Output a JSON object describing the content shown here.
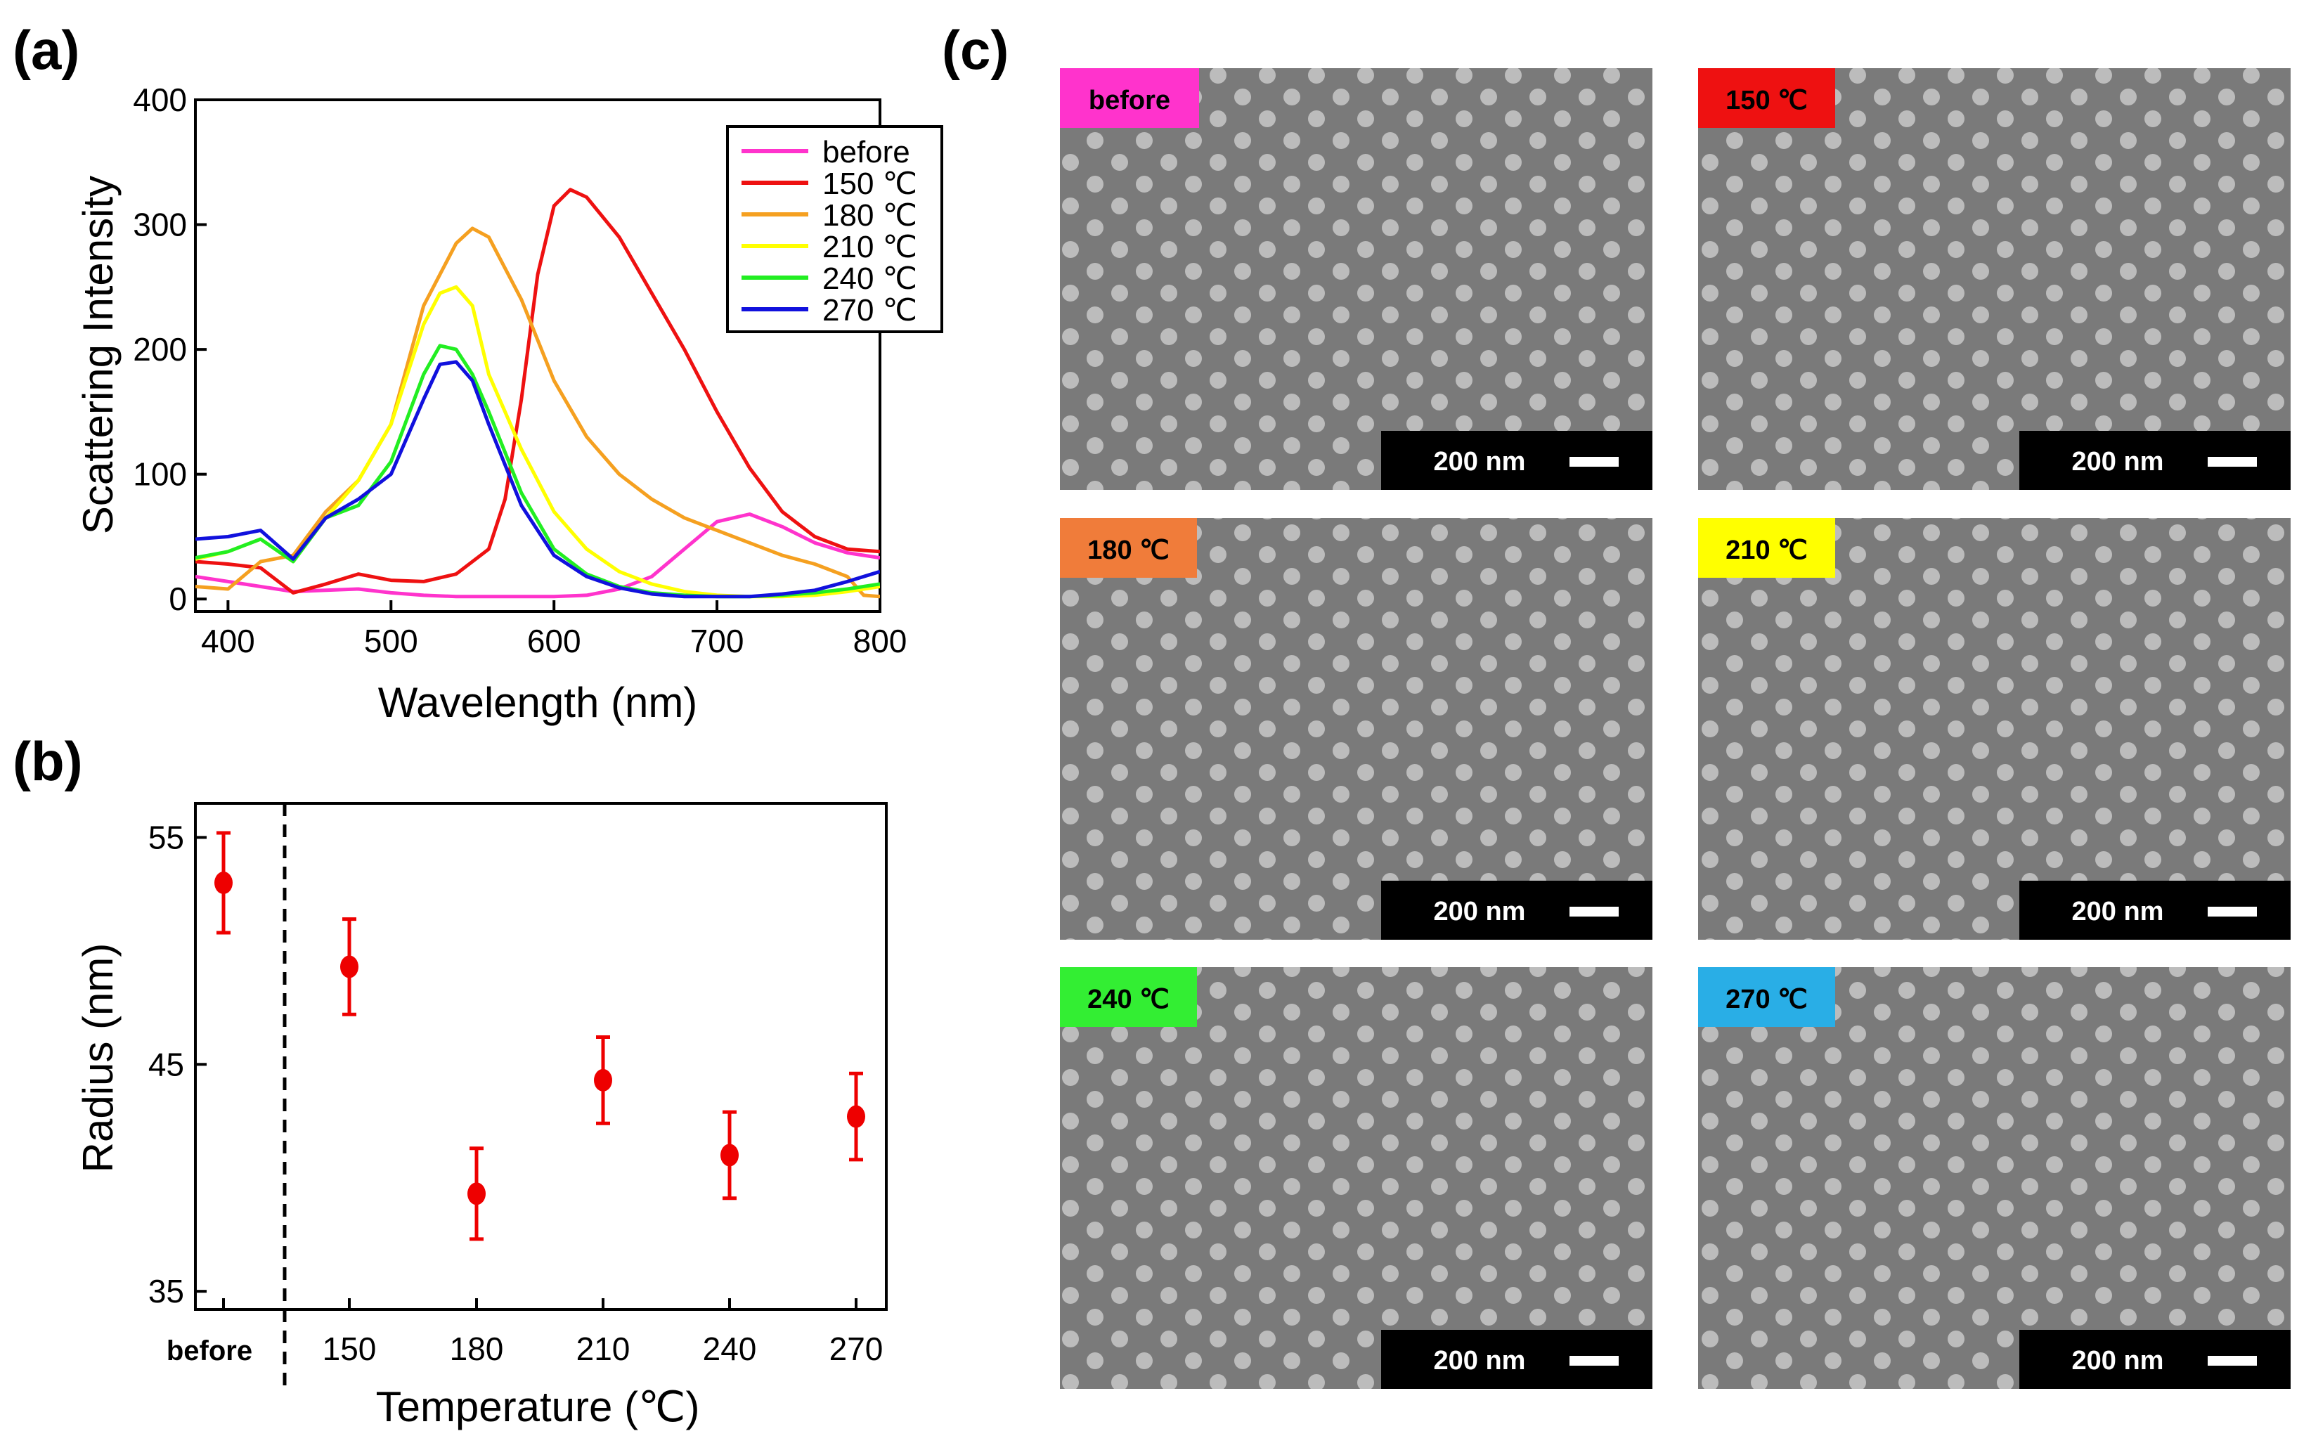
{
  "panel_labels": {
    "a": "(a)",
    "b": "(b)",
    "c": "(c)"
  },
  "colors": {
    "before": "#ff33cc",
    "t150": "#ee1111",
    "t180": "#f5a020",
    "t210": "#ffff00",
    "t240": "#22ee22",
    "t270": "#1111dd",
    "marker": "#ee0000",
    "sem_bg": "#7a7a7a",
    "sem_dot": "#c8c8c8"
  },
  "chart_data": [
    {
      "type": "line",
      "title": "",
      "xlabel": "Wavelength (nm)",
      "ylabel": "Scattering Intensity",
      "xlim": [
        380,
        800
      ],
      "ylim": [
        -10,
        400
      ],
      "xticks": [
        400,
        500,
        600,
        700,
        800
      ],
      "yticks": [
        0,
        100,
        200,
        300,
        400
      ],
      "legend_position": "top-right",
      "series": [
        {
          "name": "before",
          "color": "#ff33cc",
          "x": [
            380,
            400,
            420,
            440,
            460,
            480,
            500,
            520,
            540,
            560,
            580,
            600,
            620,
            640,
            660,
            680,
            700,
            720,
            740,
            760,
            780,
            800
          ],
          "y": [
            18,
            14,
            10,
            6,
            7,
            8,
            5,
            3,
            2,
            2,
            2,
            2,
            3,
            8,
            18,
            40,
            62,
            68,
            58,
            45,
            37,
            33
          ]
        },
        {
          "name": "150 ℃",
          "color": "#ee1111",
          "x": [
            380,
            400,
            420,
            440,
            460,
            480,
            500,
            520,
            540,
            560,
            570,
            580,
            590,
            600,
            610,
            620,
            640,
            660,
            680,
            700,
            720,
            740,
            760,
            780,
            800
          ],
          "y": [
            30,
            28,
            25,
            5,
            12,
            20,
            15,
            14,
            20,
            40,
            80,
            160,
            260,
            315,
            328,
            322,
            290,
            245,
            200,
            150,
            105,
            70,
            50,
            40,
            38
          ]
        },
        {
          "name": "180 ℃",
          "color": "#f5a020",
          "x": [
            380,
            400,
            420,
            440,
            460,
            480,
            500,
            520,
            540,
            550,
            560,
            580,
            600,
            620,
            640,
            660,
            680,
            700,
            720,
            740,
            760,
            780,
            790,
            800
          ],
          "y": [
            10,
            8,
            30,
            35,
            70,
            95,
            140,
            235,
            285,
            297,
            290,
            240,
            175,
            130,
            100,
            80,
            65,
            55,
            45,
            35,
            28,
            18,
            3,
            2
          ]
        },
        {
          "name": "210 ℃",
          "color": "#ffff00",
          "x": [
            380,
            400,
            420,
            440,
            460,
            480,
            500,
            520,
            530,
            540,
            550,
            560,
            580,
            600,
            620,
            640,
            660,
            680,
            700,
            720,
            740,
            760,
            780,
            800
          ],
          "y": [
            32,
            38,
            48,
            30,
            65,
            95,
            140,
            220,
            245,
            250,
            235,
            180,
            120,
            70,
            40,
            22,
            12,
            6,
            3,
            2,
            2,
            3,
            6,
            10
          ]
        },
        {
          "name": "240 ℃",
          "color": "#22ee22",
          "x": [
            380,
            400,
            420,
            440,
            460,
            480,
            500,
            520,
            530,
            540,
            550,
            560,
            580,
            600,
            620,
            640,
            660,
            680,
            700,
            720,
            740,
            760,
            780,
            800
          ],
          "y": [
            33,
            38,
            48,
            30,
            65,
            75,
            110,
            180,
            203,
            200,
            180,
            150,
            85,
            40,
            20,
            10,
            5,
            3,
            2,
            2,
            3,
            5,
            8,
            12
          ]
        },
        {
          "name": "270 ℃",
          "color": "#1111dd",
          "x": [
            380,
            400,
            420,
            440,
            460,
            480,
            500,
            520,
            530,
            540,
            550,
            560,
            580,
            600,
            620,
            640,
            660,
            680,
            700,
            720,
            740,
            760,
            780,
            800
          ],
          "y": [
            48,
            50,
            55,
            32,
            65,
            80,
            100,
            160,
            188,
            190,
            175,
            140,
            75,
            35,
            18,
            9,
            4,
            2,
            2,
            2,
            4,
            7,
            14,
            22
          ]
        }
      ]
    },
    {
      "type": "scatter",
      "title": "",
      "xlabel": "Temperature (℃)",
      "ylabel": "Radius (nm)",
      "categories": [
        "before",
        "150",
        "180",
        "210",
        "240",
        "270"
      ],
      "values": [
        53.0,
        49.3,
        39.3,
        44.3,
        41.0,
        42.7
      ],
      "errors": [
        2.2,
        2.1,
        2.0,
        1.9,
        1.9,
        1.9
      ],
      "ylim": [
        34.2,
        56.5
      ],
      "yticks": [
        35,
        45,
        55
      ],
      "separator": "dashed line between before and 150"
    }
  ],
  "sem_panels": [
    {
      "label": "before",
      "color": "#ff33cc",
      "scale_bar": "200 nm"
    },
    {
      "label": "150 ℃",
      "color": "#ee1111",
      "scale_bar": "200 nm"
    },
    {
      "label": "180 ℃",
      "color": "#f07c3a",
      "scale_bar": "200 nm"
    },
    {
      "label": "210 ℃",
      "color": "#ffff00",
      "scale_bar": "200 nm"
    },
    {
      "label": "240 ℃",
      "color": "#33ee33",
      "scale_bar": "200 nm"
    },
    {
      "label": "270 ℃",
      "color": "#29aee6",
      "scale_bar": "200 nm"
    }
  ]
}
